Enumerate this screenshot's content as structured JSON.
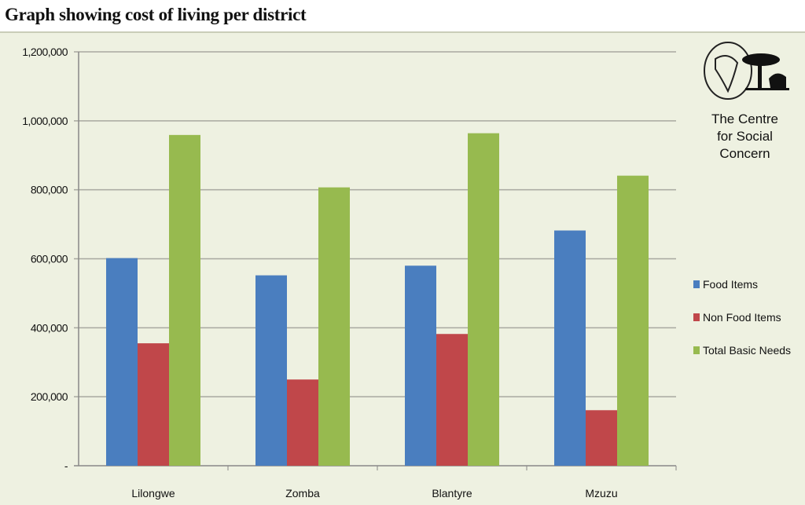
{
  "chart_data": {
    "type": "bar",
    "title": "Graph showing cost of living per district",
    "xlabel": "",
    "ylabel": "",
    "categories": [
      "Lilongwe",
      "Zomba",
      "Blantyre",
      "Mzuzu"
    ],
    "series": [
      {
        "name": "Food Items",
        "color": "#4a7ebf",
        "values": [
          602000,
          552000,
          580000,
          682000
        ]
      },
      {
        "name": "Non Food Items",
        "color": "#c0474a",
        "values": [
          355000,
          250000,
          382000,
          161000
        ]
      },
      {
        "name": "Total Basic Needs",
        "color": "#97ba4f",
        "values": [
          959000,
          807000,
          964000,
          841000
        ]
      }
    ],
    "ylim": [
      0,
      1200000
    ],
    "yticks": [
      0,
      200000,
      400000,
      600000,
      800000,
      1000000,
      1200000
    ],
    "ytick_labels": [
      "-",
      "200,000",
      "400,000",
      "600,000",
      "800,000",
      "1,000,000",
      "1,200,000"
    ],
    "grid": true,
    "legend_position": "right"
  },
  "logo": {
    "org_lines": [
      "The Centre",
      "for Social",
      "Concern"
    ]
  }
}
